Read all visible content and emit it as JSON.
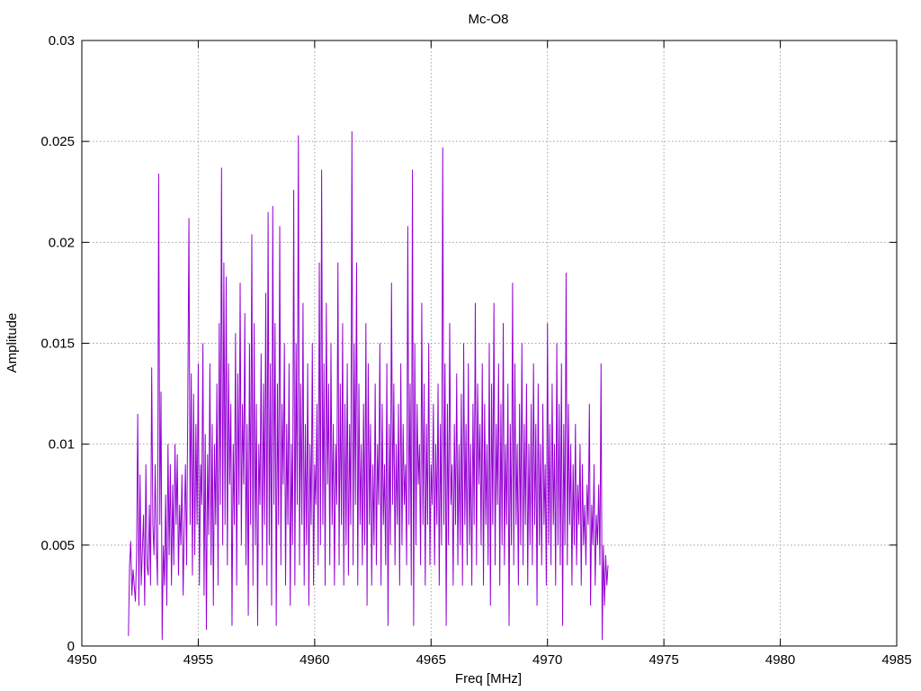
{
  "chart_data": {
    "type": "line",
    "title": "Mc-O8",
    "xlabel": "Freq [MHz]",
    "ylabel": "Amplitude",
    "xlim": [
      4950,
      4985
    ],
    "ylim": [
      0,
      0.03
    ],
    "x_ticks": [
      4950,
      4955,
      4960,
      4965,
      4970,
      4975,
      4980,
      4985
    ],
    "x_tick_labels": [
      "4950",
      "4955",
      "4960",
      "4965",
      "4970",
      "4975",
      "4980",
      "4985"
    ],
    "y_ticks": [
      0,
      0.005,
      0.01,
      0.015,
      0.02,
      0.025,
      0.03
    ],
    "y_tick_labels": [
      "0",
      "0.005",
      "0.01",
      "0.015",
      "0.02",
      "0.025",
      "0.03"
    ],
    "grid": true,
    "line_color": "#9400d3",
    "series": [
      {
        "x_start": 4952.0,
        "x_step": 0.05,
        "values": [
          0.0005,
          0.004,
          0.0052,
          0.0025,
          0.0038,
          0.003,
          0.0022,
          0.0045,
          0.0115,
          0.002,
          0.0085,
          0.003,
          0.0048,
          0.0065,
          0.002,
          0.009,
          0.004,
          0.0035,
          0.007,
          0.003,
          0.0138,
          0.006,
          0.0045,
          0.009,
          0.005,
          0.003,
          0.0234,
          0.006,
          0.0126,
          0.0003,
          0.005,
          0.003,
          0.0075,
          0.002,
          0.01,
          0.0045,
          0.009,
          0.003,
          0.008,
          0.004,
          0.01,
          0.006,
          0.0095,
          0.0035,
          0.007,
          0.005,
          0.0085,
          0.0025,
          0.006,
          0.009,
          0.004,
          0.012,
          0.0212,
          0.006,
          0.0135,
          0.0035,
          0.0125,
          0.0045,
          0.011,
          0.006,
          0.014,
          0.003,
          0.009,
          0.007,
          0.015,
          0.0025,
          0.0105,
          0.0008,
          0.0095,
          0.0055,
          0.014,
          0.004,
          0.011,
          0.002,
          0.01,
          0.006,
          0.013,
          0.003,
          0.016,
          0.007,
          0.0237,
          0.005,
          0.019,
          0.006,
          0.0183,
          0.004,
          0.014,
          0.008,
          0.012,
          0.001,
          0.01,
          0.006,
          0.0155,
          0.003,
          0.0135,
          0.007,
          0.018,
          0.005,
          0.012,
          0.008,
          0.0165,
          0.004,
          0.011,
          0.0015,
          0.015,
          0.006,
          0.0204,
          0.003,
          0.016,
          0.005,
          0.012,
          0.001,
          0.01,
          0.007,
          0.0145,
          0.004,
          0.013,
          0.006,
          0.0175,
          0.003,
          0.0215,
          0.005,
          0.014,
          0.002,
          0.0218,
          0.007,
          0.016,
          0.001,
          0.013,
          0.006,
          0.0208,
          0.004,
          0.012,
          0.008,
          0.015,
          0.003,
          0.011,
          0.006,
          0.014,
          0.002,
          0.01,
          0.005,
          0.0226,
          0.003,
          0.015,
          0.007,
          0.0253,
          0.004,
          0.013,
          0.006,
          0.017,
          0.003,
          0.011,
          0.005,
          0.014,
          0.002,
          0.01,
          0.006,
          0.015,
          0.003,
          0.009,
          0.007,
          0.012,
          0.004,
          0.019,
          0.005,
          0.0236,
          0.006,
          0.014,
          0.003,
          0.017,
          0.008,
          0.013,
          0.004,
          0.015,
          0.006,
          0.011,
          0.003,
          0.01,
          0.007,
          0.019,
          0.004,
          0.013,
          0.006,
          0.016,
          0.003,
          0.012,
          0.005,
          0.014,
          0.0035,
          0.011,
          0.006,
          0.0255,
          0.004,
          0.015,
          0.007,
          0.019,
          0.003,
          0.013,
          0.006,
          0.01,
          0.004,
          0.012,
          0.005,
          0.016,
          0.002,
          0.014,
          0.006,
          0.011,
          0.003,
          0.009,
          0.005,
          0.013,
          0.004,
          0.01,
          0.007,
          0.015,
          0.003,
          0.012,
          0.006,
          0.009,
          0.004,
          0.014,
          0.001,
          0.011,
          0.005,
          0.018,
          0.007,
          0.013,
          0.004,
          0.01,
          0.006,
          0.012,
          0.003,
          0.014,
          0.005,
          0.011,
          0.007,
          0.009,
          0.004,
          0.0208,
          0.006,
          0.013,
          0.003,
          0.0236,
          0.001,
          0.015,
          0.005,
          0.012,
          0.008,
          0.01,
          0.004,
          0.017,
          0.006,
          0.013,
          0.003,
          0.011,
          0.006,
          0.015,
          0.004,
          0.009,
          0.007,
          0.012,
          0.004,
          0.01,
          0.006,
          0.013,
          0.003,
          0.011,
          0.005,
          0.0247,
          0.006,
          0.014,
          0.001,
          0.012,
          0.005,
          0.016,
          0.007,
          0.009,
          0.003,
          0.011,
          0.006,
          0.0135,
          0.004,
          0.01,
          0.005,
          0.0125,
          0.003,
          0.015,
          0.006,
          0.011,
          0.004,
          0.014,
          0.005,
          0.01,
          0.003,
          0.012,
          0.006,
          0.017,
          0.004,
          0.013,
          0.008,
          0.011,
          0.005,
          0.014,
          0.003,
          0.012,
          0.006,
          0.01,
          0.004,
          0.015,
          0.002,
          0.013,
          0.006,
          0.017,
          0.004,
          0.011,
          0.007,
          0.014,
          0.003,
          0.012,
          0.005,
          0.016,
          0.004,
          0.01,
          0.006,
          0.013,
          0.001,
          0.011,
          0.005,
          0.018,
          0.004,
          0.014,
          0.006,
          0.01,
          0.003,
          0.012,
          0.005,
          0.015,
          0.004,
          0.011,
          0.006,
          0.013,
          0.003,
          0.01,
          0.005,
          0.012,
          0.004,
          0.014,
          0.006,
          0.011,
          0.002,
          0.013,
          0.005,
          0.01,
          0.004,
          0.012,
          0.006,
          0.009,
          0.003,
          0.016,
          0.005,
          0.011,
          0.004,
          0.013,
          0.006,
          0.01,
          0.003,
          0.015,
          0.005,
          0.012,
          0.004,
          0.014,
          0.001,
          0.011,
          0.005,
          0.0185,
          0.004,
          0.012,
          0.006,
          0.01,
          0.003,
          0.009,
          0.005,
          0.011,
          0.004,
          0.008,
          0.006,
          0.01,
          0.003,
          0.009,
          0.005,
          0.007,
          0.004,
          0.008,
          0.006,
          0.012,
          0.002,
          0.007,
          0.005,
          0.009,
          0.003,
          0.0065,
          0.005,
          0.008,
          0.004,
          0.014,
          0.0003,
          0.005,
          0.002,
          0.0045,
          0.003,
          0.004
        ]
      }
    ]
  }
}
